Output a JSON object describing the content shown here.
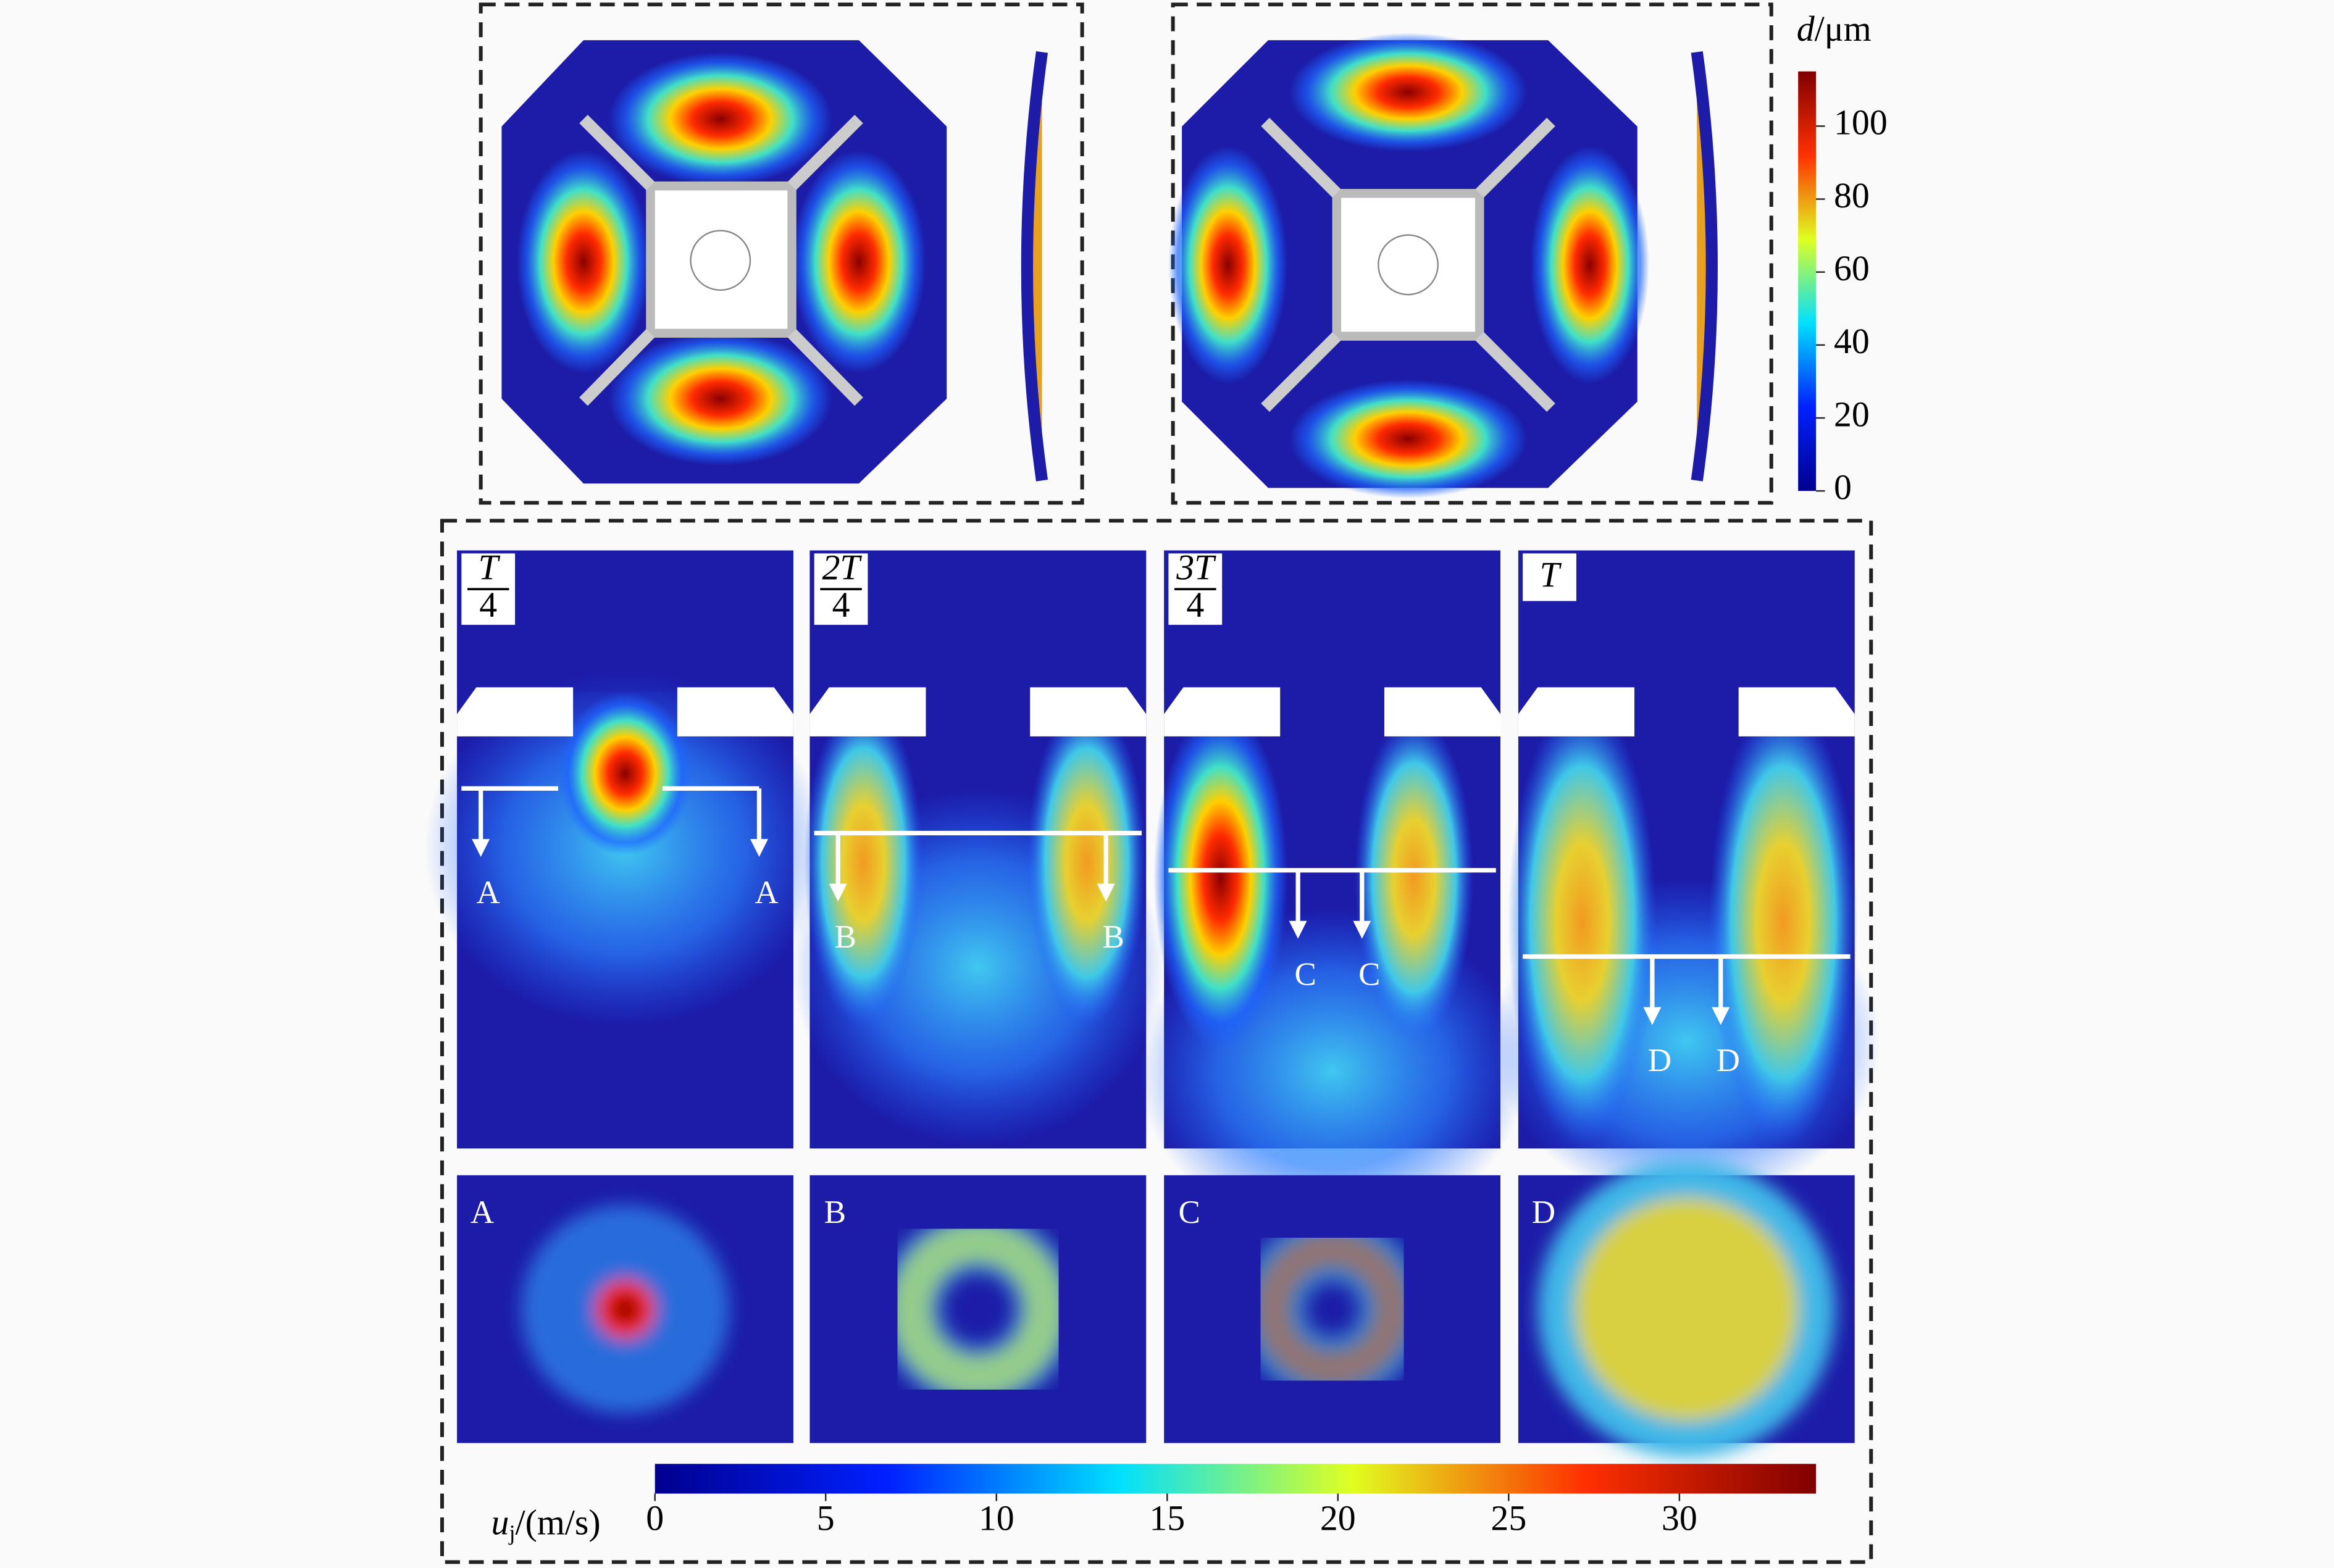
{
  "displacement_colorbar": {
    "label": {
      "symbol": "d",
      "unit": "/μm"
    },
    "range": [
      0,
      115
    ],
    "ticks": [
      0,
      20,
      40,
      60,
      80,
      100
    ]
  },
  "velocity_colorbar": {
    "label": {
      "symbol": "u",
      "subscript": "j",
      "unit": "/(m/s)"
    },
    "range": [
      0,
      34
    ],
    "ticks": [
      0,
      5,
      10,
      15,
      20,
      25,
      30
    ]
  },
  "time_panels": [
    {
      "numerator": "T",
      "denominator": "4",
      "section_labels": [
        "A",
        "A"
      ]
    },
    {
      "numerator": "2T",
      "denominator": "4",
      "section_labels": [
        "B",
        "B"
      ]
    },
    {
      "numerator": "3T",
      "denominator": "4",
      "section_labels": [
        "C",
        "C"
      ]
    },
    {
      "label": "T",
      "section_labels": [
        "D",
        "D"
      ]
    }
  ],
  "cross_sections": [
    "A",
    "B",
    "C",
    "D"
  ]
}
